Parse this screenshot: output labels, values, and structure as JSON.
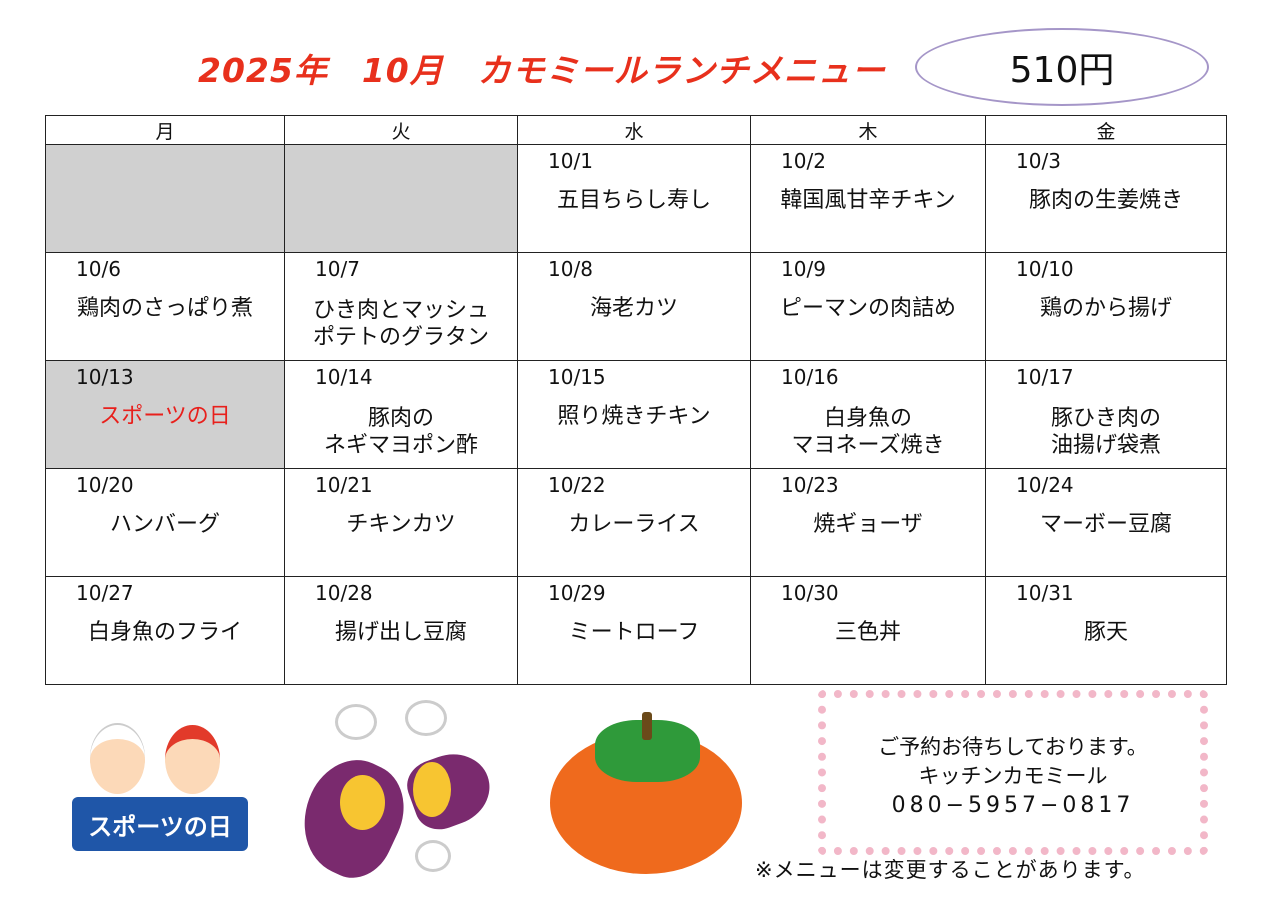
{
  "header": {
    "title": "2025年　10月　カモミールランチメニュー",
    "price": "510円"
  },
  "weekdays": [
    "月",
    "火",
    "水",
    "木",
    "金"
  ],
  "weeks": [
    [
      {
        "date": "",
        "dish": "",
        "holiday": true
      },
      {
        "date": "",
        "dish": "",
        "holiday": true
      },
      {
        "date": "10/1",
        "dish": "五目ちらし寿し"
      },
      {
        "date": "10/2",
        "dish": "韓国風甘辛チキン"
      },
      {
        "date": "10/3",
        "dish": "豚肉の生姜焼き"
      }
    ],
    [
      {
        "date": "10/6",
        "dish": "鶏肉のさっぱり煮"
      },
      {
        "date": "10/7",
        "dish": "ひき肉とマッシュ\nポテトのグラタン"
      },
      {
        "date": "10/8",
        "dish": "海老カツ"
      },
      {
        "date": "10/9",
        "dish": "ピーマンの肉詰め"
      },
      {
        "date": "10/10",
        "dish": "鶏のから揚げ"
      }
    ],
    [
      {
        "date": "10/13",
        "dish": "スポーツの日",
        "holiday": true,
        "red": true
      },
      {
        "date": "10/14",
        "dish": "豚肉の\nネギマヨポン酢"
      },
      {
        "date": "10/15",
        "dish": "照り焼きチキン"
      },
      {
        "date": "10/16",
        "dish": "白身魚の\nマヨネーズ焼き"
      },
      {
        "date": "10/17",
        "dish": "豚ひき肉の\n油揚げ袋煮"
      }
    ],
    [
      {
        "date": "10/20",
        "dish": "ハンバーグ"
      },
      {
        "date": "10/21",
        "dish": "チキンカツ"
      },
      {
        "date": "10/22",
        "dish": "カレーライス"
      },
      {
        "date": "10/23",
        "dish": "焼ギョーザ"
      },
      {
        "date": "10/24",
        "dish": "マーボー豆腐"
      }
    ],
    [
      {
        "date": "10/27",
        "dish": "白身魚のフライ"
      },
      {
        "date": "10/28",
        "dish": "揚げ出し豆腐"
      },
      {
        "date": "10/29",
        "dish": "ミートローフ"
      },
      {
        "date": "10/30",
        "dish": "三色丼"
      },
      {
        "date": "10/31",
        "dish": "豚天"
      }
    ]
  ],
  "illustrations": {
    "sports_day_sign": "スポーツの日"
  },
  "notice": {
    "line1": "ご予約お待ちしております。",
    "line2": "キッチンカモミール",
    "phone": "080−5957−0817"
  },
  "caution": "※メニューは変更することがあります。",
  "colors": {
    "title": "#e8301c",
    "holiday_text": "#e8201c",
    "holiday_cell": "#d0d0d0",
    "price_border": "#a596c8"
  }
}
